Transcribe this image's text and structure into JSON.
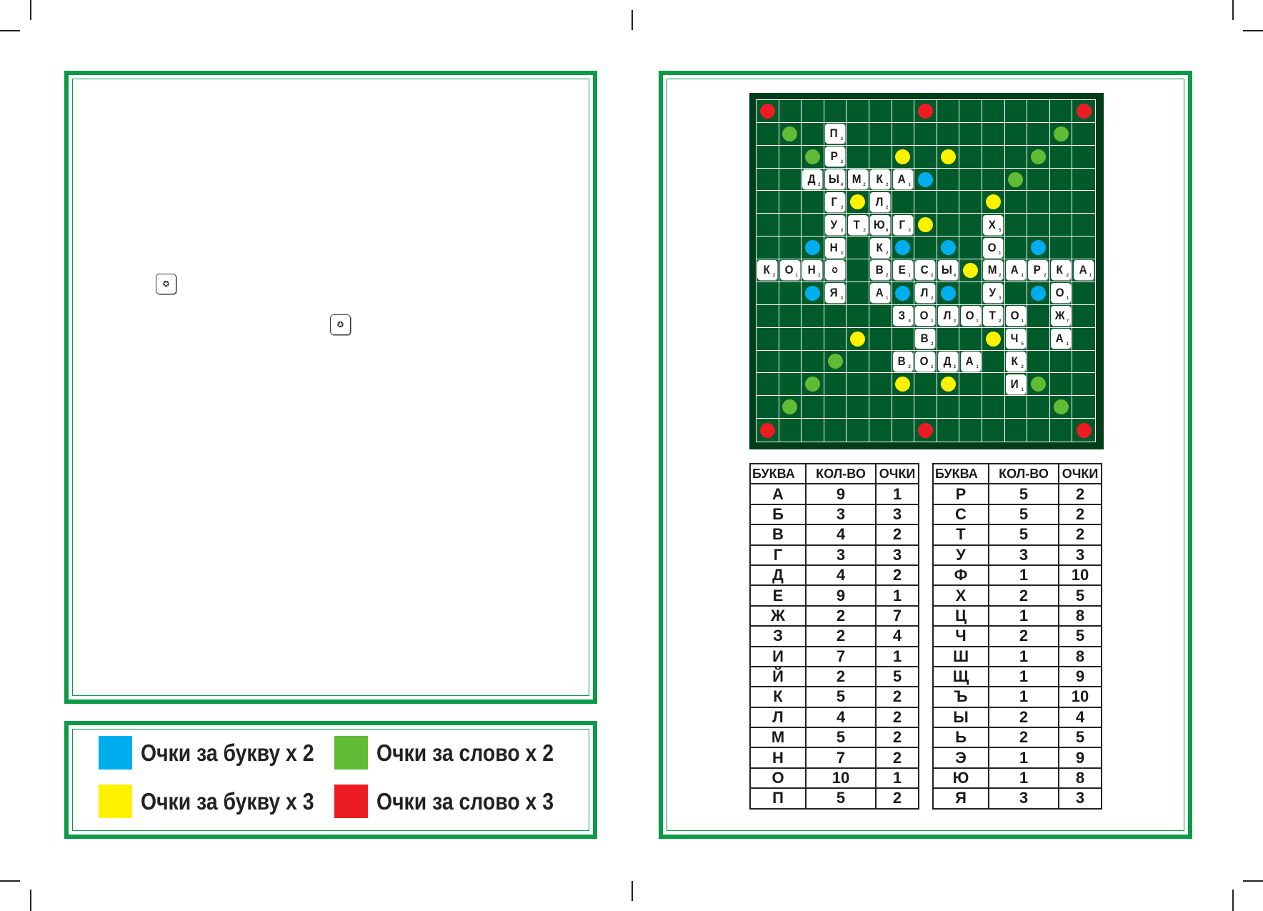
{
  "legend": [
    {
      "label": "Очки за букву х 2",
      "color": "#00aeef"
    },
    {
      "label": "Очки за слово х 2",
      "color": "#62bb35"
    },
    {
      "label": "Очки за букву х 3",
      "color": "#fff200"
    },
    {
      "label": "Очки за слово х 3",
      "color": "#ed1c24"
    }
  ],
  "star_icon": "✪",
  "board": {
    "bonus_colors": {
      "L2": "#00aeef",
      "L3": "#fff200",
      "W2": "#62bb35",
      "W3": "#ed1c24"
    },
    "bonuses": [
      [
        0,
        0,
        "W3"
      ],
      [
        0,
        7,
        "W3"
      ],
      [
        0,
        14,
        "W3"
      ],
      [
        1,
        1,
        "W2"
      ],
      [
        1,
        13,
        "W2"
      ],
      [
        2,
        2,
        "W2"
      ],
      [
        2,
        6,
        "L3"
      ],
      [
        2,
        8,
        "L3"
      ],
      [
        2,
        12,
        "W2"
      ],
      [
        3,
        7,
        "L2"
      ],
      [
        3,
        11,
        "W2"
      ],
      [
        4,
        4,
        "L3"
      ],
      [
        4,
        10,
        "L3"
      ],
      [
        5,
        7,
        "L3"
      ],
      [
        6,
        2,
        "L2"
      ],
      [
        6,
        6,
        "L2"
      ],
      [
        6,
        8,
        "L2"
      ],
      [
        6,
        12,
        "L2"
      ],
      [
        7,
        9,
        "L3"
      ],
      [
        8,
        2,
        "L2"
      ],
      [
        8,
        6,
        "L2"
      ],
      [
        8,
        8,
        "L2"
      ],
      [
        8,
        12,
        "L2"
      ],
      [
        10,
        4,
        "L3"
      ],
      [
        10,
        10,
        "L3"
      ],
      [
        11,
        3,
        "W2"
      ],
      [
        12,
        2,
        "W2"
      ],
      [
        12,
        6,
        "L3"
      ],
      [
        12,
        8,
        "L3"
      ],
      [
        12,
        12,
        "W2"
      ],
      [
        13,
        1,
        "W2"
      ],
      [
        13,
        13,
        "W2"
      ],
      [
        14,
        0,
        "W3"
      ],
      [
        14,
        7,
        "W3"
      ],
      [
        14,
        14,
        "W3"
      ]
    ],
    "tiles": [
      [
        1,
        3,
        "П",
        "2"
      ],
      [
        2,
        3,
        "Р",
        "2"
      ],
      [
        3,
        2,
        "Д",
        "2"
      ],
      [
        3,
        3,
        "Ы",
        "4"
      ],
      [
        3,
        4,
        "М",
        "2"
      ],
      [
        3,
        5,
        "К",
        "2"
      ],
      [
        3,
        6,
        "А",
        "1"
      ],
      [
        4,
        3,
        "Г",
        "3"
      ],
      [
        4,
        5,
        "Л",
        "2"
      ],
      [
        5,
        3,
        "У",
        "3"
      ],
      [
        5,
        4,
        "Т",
        "2"
      ],
      [
        5,
        5,
        "Ю",
        "8"
      ],
      [
        5,
        6,
        "Г",
        "3"
      ],
      [
        5,
        10,
        "Х",
        "5"
      ],
      [
        6,
        3,
        "Н",
        "2"
      ],
      [
        6,
        5,
        "К",
        "2"
      ],
      [
        6,
        10,
        "О",
        "1"
      ],
      [
        7,
        0,
        "К",
        "2"
      ],
      [
        7,
        1,
        "О",
        "1"
      ],
      [
        7,
        2,
        "Н",
        "2"
      ],
      [
        7,
        3,
        "✪",
        ""
      ],
      [
        7,
        5,
        "В",
        "2"
      ],
      [
        7,
        6,
        "Е",
        "1"
      ],
      [
        7,
        7,
        "С",
        "2"
      ],
      [
        7,
        8,
        "Ы",
        "4"
      ],
      [
        7,
        10,
        "М",
        "2"
      ],
      [
        7,
        11,
        "А",
        "1"
      ],
      [
        7,
        12,
        "Р",
        "2"
      ],
      [
        7,
        13,
        "К",
        "2"
      ],
      [
        7,
        14,
        "А",
        "1"
      ],
      [
        8,
        3,
        "Я",
        "3"
      ],
      [
        8,
        5,
        "А",
        "1"
      ],
      [
        8,
        7,
        "Л",
        "2"
      ],
      [
        8,
        10,
        "У",
        "3"
      ],
      [
        8,
        13,
        "О",
        "1"
      ],
      [
        9,
        6,
        "З",
        "4"
      ],
      [
        9,
        7,
        "О",
        "1"
      ],
      [
        9,
        8,
        "Л",
        "2"
      ],
      [
        9,
        9,
        "О",
        "1"
      ],
      [
        9,
        10,
        "Т",
        "2"
      ],
      [
        9,
        11,
        "О",
        "1"
      ],
      [
        9,
        13,
        "Ж",
        "7"
      ],
      [
        10,
        7,
        "В",
        "2"
      ],
      [
        10,
        11,
        "Ч",
        "5"
      ],
      [
        10,
        13,
        "А",
        "1"
      ],
      [
        11,
        6,
        "В",
        "2"
      ],
      [
        11,
        7,
        "О",
        "1"
      ],
      [
        11,
        8,
        "Д",
        "2"
      ],
      [
        11,
        9,
        "А",
        "1"
      ],
      [
        11,
        11,
        "К",
        "2"
      ],
      [
        12,
        11,
        "И",
        "1"
      ]
    ]
  },
  "tables": [
    {
      "headers": [
        "БУКВА",
        "КОЛ-ВО",
        "ОЧКИ"
      ],
      "rows": [
        [
          "А",
          "9",
          "1"
        ],
        [
          "Б",
          "3",
          "3"
        ],
        [
          "В",
          "4",
          "2"
        ],
        [
          "Г",
          "3",
          "3"
        ],
        [
          "Д",
          "4",
          "2"
        ],
        [
          "Е",
          "9",
          "1"
        ],
        [
          "Ж",
          "2",
          "7"
        ],
        [
          "З",
          "2",
          "4"
        ],
        [
          "И",
          "7",
          "1"
        ],
        [
          "Й",
          "2",
          "5"
        ],
        [
          "К",
          "5",
          "2"
        ],
        [
          "Л",
          "4",
          "2"
        ],
        [
          "М",
          "5",
          "2"
        ],
        [
          "Н",
          "7",
          "2"
        ],
        [
          "О",
          "10",
          "1"
        ],
        [
          "П",
          "5",
          "2"
        ]
      ]
    },
    {
      "headers": [
        "БУКВА",
        "КОЛ-ВО",
        "ОЧКИ"
      ],
      "rows": [
        [
          "Р",
          "5",
          "2"
        ],
        [
          "С",
          "5",
          "2"
        ],
        [
          "Т",
          "5",
          "2"
        ],
        [
          "У",
          "3",
          "3"
        ],
        [
          "Ф",
          "1",
          "10"
        ],
        [
          "Х",
          "2",
          "5"
        ],
        [
          "Ц",
          "1",
          "8"
        ],
        [
          "Ч",
          "2",
          "5"
        ],
        [
          "Ш",
          "1",
          "8"
        ],
        [
          "Щ",
          "1",
          "9"
        ],
        [
          "Ъ",
          "1",
          "10"
        ],
        [
          "Ы",
          "2",
          "4"
        ],
        [
          "Ь",
          "2",
          "5"
        ],
        [
          "Э",
          "1",
          "9"
        ],
        [
          "Ю",
          "1",
          "8"
        ],
        [
          "Я",
          "3",
          "3"
        ]
      ]
    }
  ]
}
